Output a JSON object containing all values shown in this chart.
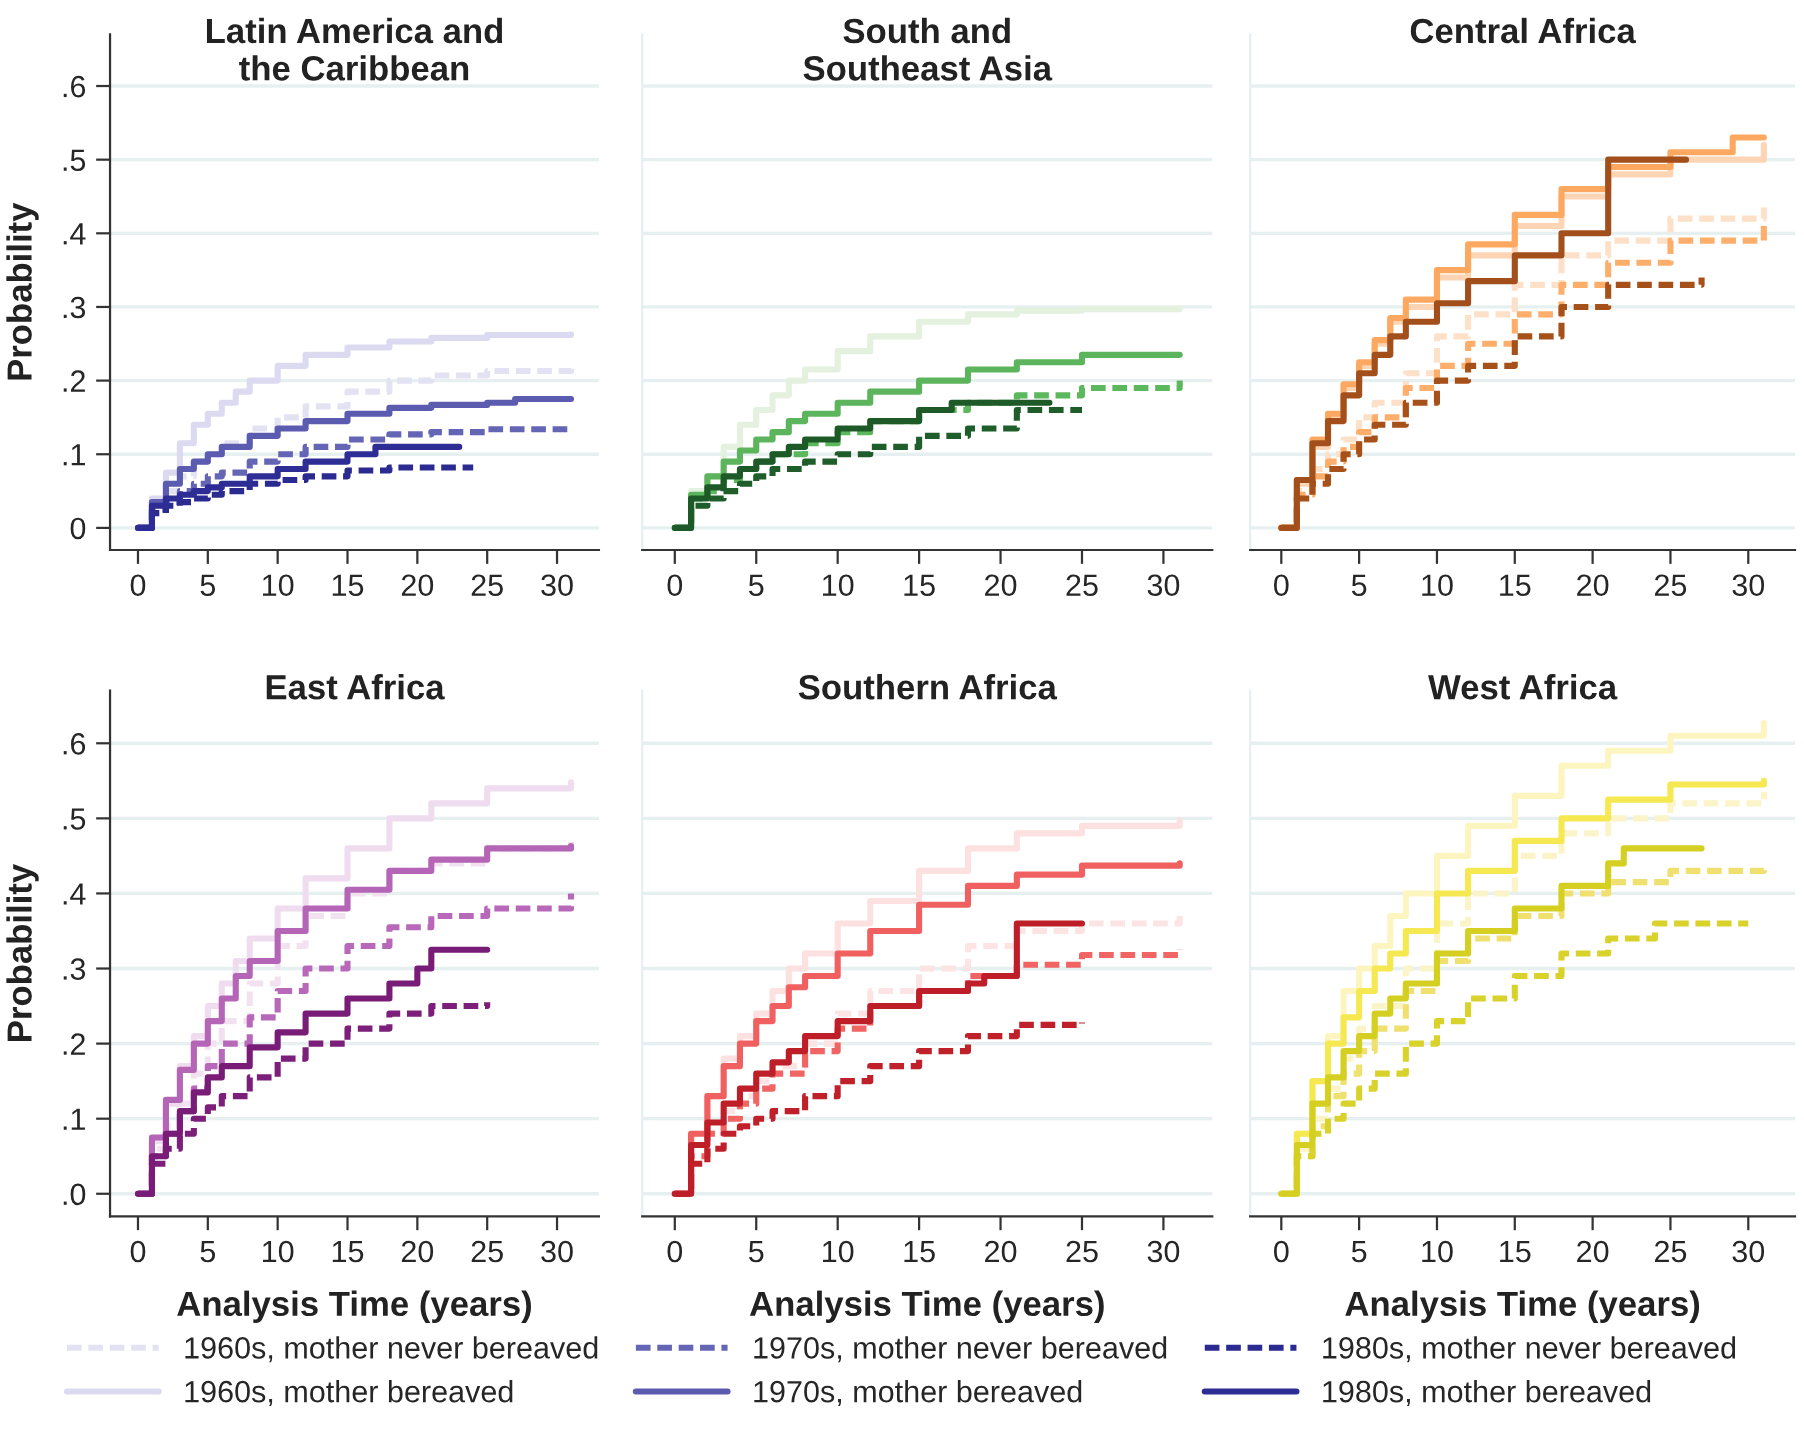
{
  "chart_data": [
    {
      "type": "step",
      "title": "Latin America and\nthe Caribbean",
      "ylabel": "Probability",
      "xlim": [
        -2,
        33
      ],
      "xticks": [
        0,
        5,
        10,
        15,
        20,
        25,
        30
      ],
      "ylim": [
        -0.03,
        0.67
      ],
      "yticks": [
        {
          "value": 0,
          "label": "0"
        },
        {
          "value": 0.1,
          "label": ".1"
        },
        {
          "value": 0.2,
          "label": ".2"
        },
        {
          "value": 0.3,
          "label": ".3"
        },
        {
          "value": 0.4,
          "label": ".4"
        },
        {
          "value": 0.5,
          "label": ".5"
        },
        {
          "value": 0.6,
          "label": ".6"
        }
      ],
      "grid": "y",
      "legend": "bottom",
      "series": [
        {
          "name": "1960s, mother never bereaved",
          "color": "#e3e2f2",
          "line_style": "dashed",
          "x": [
            0,
            1,
            2,
            3,
            4,
            5,
            6,
            8,
            10,
            12,
            15,
            18,
            21,
            25,
            31
          ],
          "values": [
            0,
            0.03,
            0.05,
            0.07,
            0.09,
            0.1,
            0.115,
            0.135,
            0.15,
            0.165,
            0.185,
            0.2,
            0.207,
            0.213,
            0.217
          ]
        },
        {
          "name": "1960s, mother bereaved",
          "color": "#dcdaf0",
          "line_style": "solid",
          "x": [
            0,
            1,
            2,
            3,
            4,
            5,
            6,
            7,
            8,
            10,
            12,
            15,
            18,
            21,
            25,
            31
          ],
          "values": [
            0,
            0.04,
            0.075,
            0.115,
            0.14,
            0.155,
            0.17,
            0.185,
            0.2,
            0.22,
            0.235,
            0.245,
            0.253,
            0.258,
            0.262,
            0.263
          ]
        },
        {
          "name": "1970s, mother never bereaved",
          "color": "#6565b5",
          "line_style": "dashed",
          "x": [
            0,
            1,
            2,
            3,
            4,
            5,
            6,
            8,
            10,
            12,
            15,
            18,
            21,
            25,
            31
          ],
          "values": [
            0,
            0.025,
            0.035,
            0.05,
            0.06,
            0.07,
            0.075,
            0.09,
            0.1,
            0.11,
            0.12,
            0.127,
            0.13,
            0.134,
            0.136
          ]
        },
        {
          "name": "1970s, mother bereaved",
          "color": "#5b5bb0",
          "line_style": "solid",
          "x": [
            0,
            1,
            2,
            3,
            4,
            5,
            6,
            8,
            10,
            12,
            15,
            18,
            21,
            25,
            27,
            31
          ],
          "values": [
            0,
            0.035,
            0.06,
            0.08,
            0.09,
            0.1,
            0.11,
            0.125,
            0.135,
            0.145,
            0.155,
            0.163,
            0.167,
            0.17,
            0.175,
            0.175
          ]
        },
        {
          "name": "1980s, mother never bereaved",
          "color": "#2a2a90",
          "line_style": "dashed",
          "x": [
            0,
            1,
            2,
            3,
            4,
            5,
            6,
            8,
            10,
            12,
            15,
            18,
            24
          ],
          "values": [
            0,
            0.02,
            0.03,
            0.035,
            0.04,
            0.045,
            0.05,
            0.06,
            0.065,
            0.07,
            0.078,
            0.082,
            0.082
          ]
        },
        {
          "name": "1980s, mother bereaved",
          "color": "#2d2d95",
          "line_style": "solid",
          "x": [
            0,
            1,
            2,
            3,
            4,
            5,
            6,
            8,
            10,
            12,
            15,
            17,
            23
          ],
          "values": [
            0,
            0.03,
            0.04,
            0.045,
            0.05,
            0.055,
            0.06,
            0.07,
            0.08,
            0.09,
            0.1,
            0.11,
            0.11
          ]
        }
      ]
    },
    {
      "type": "step",
      "title": "South and\nSoutheast Asia",
      "xlim": [
        -2,
        33
      ],
      "xticks": [
        0,
        5,
        10,
        15,
        20,
        25,
        30
      ],
      "ylim": [
        -0.03,
        0.67
      ],
      "yticks": [
        0,
        0.1,
        0.2,
        0.3,
        0.4,
        0.5,
        0.6
      ],
      "tick_labels": "x",
      "grid": "y",
      "series": [
        {
          "color": "#e3f1de",
          "line_style": "solid",
          "x": [
            0,
            1,
            2,
            3,
            4,
            5,
            6,
            7,
            8,
            10,
            12,
            15,
            18,
            21,
            25,
            31
          ],
          "values": [
            0,
            0.05,
            0.07,
            0.11,
            0.14,
            0.16,
            0.18,
            0.2,
            0.215,
            0.24,
            0.26,
            0.28,
            0.29,
            0.295,
            0.297,
            0.298
          ]
        },
        {
          "color": "#5cb85c",
          "line_style": "dashed",
          "x": [
            0,
            1,
            2,
            3,
            4,
            5,
            6,
            8,
            10,
            12,
            15,
            18,
            21,
            25,
            31
          ],
          "values": [
            0,
            0.04,
            0.05,
            0.065,
            0.08,
            0.09,
            0.1,
            0.115,
            0.13,
            0.145,
            0.16,
            0.17,
            0.18,
            0.19,
            0.2
          ]
        },
        {
          "color": "#5cb45c",
          "line_style": "solid",
          "x": [
            0,
            1,
            2,
            3,
            4,
            5,
            6,
            7,
            8,
            10,
            12,
            15,
            18,
            21,
            25,
            31
          ],
          "values": [
            0,
            0.045,
            0.07,
            0.09,
            0.105,
            0.12,
            0.13,
            0.145,
            0.155,
            0.17,
            0.185,
            0.2,
            0.215,
            0.225,
            0.235,
            0.235
          ]
        },
        {
          "color": "#1f5e2a",
          "line_style": "dashed",
          "x": [
            0,
            1,
            2,
            3,
            4,
            5,
            6,
            8,
            10,
            12,
            15,
            18,
            21,
            25
          ],
          "values": [
            0,
            0.03,
            0.04,
            0.05,
            0.06,
            0.07,
            0.08,
            0.09,
            0.1,
            0.11,
            0.125,
            0.135,
            0.16,
            0.16
          ]
        },
        {
          "color": "#1d5a28",
          "line_style": "solid",
          "x": [
            0,
            1,
            2,
            3,
            4,
            5,
            6,
            7,
            8,
            10,
            12,
            15,
            17,
            23
          ],
          "values": [
            0,
            0.04,
            0.055,
            0.07,
            0.08,
            0.09,
            0.1,
            0.11,
            0.12,
            0.135,
            0.145,
            0.16,
            0.17,
            0.17
          ]
        }
      ]
    },
    {
      "type": "step",
      "title": "Central Africa",
      "xlim": [
        -2,
        33
      ],
      "xticks": [
        0,
        5,
        10,
        15,
        20,
        25,
        30
      ],
      "ylim": [
        -0.03,
        0.67
      ],
      "yticks": [
        0,
        0.1,
        0.2,
        0.3,
        0.4,
        0.5,
        0.6
      ],
      "tick_labels": "x",
      "grid": "y",
      "series": [
        {
          "color": "#fde0c8",
          "line_style": "dashed",
          "x": [
            0,
            1,
            2,
            3,
            4,
            5,
            6,
            8,
            10,
            12,
            15,
            18,
            21,
            25,
            31
          ],
          "values": [
            0,
            0.05,
            0.08,
            0.1,
            0.12,
            0.15,
            0.17,
            0.21,
            0.26,
            0.29,
            0.33,
            0.37,
            0.39,
            0.42,
            0.435
          ]
        },
        {
          "color": "#fdd5b5",
          "line_style": "solid",
          "x": [
            0,
            1,
            2,
            3,
            4,
            5,
            6,
            7,
            8,
            10,
            12,
            15,
            18,
            21,
            25,
            31
          ],
          "values": [
            0,
            0.06,
            0.11,
            0.15,
            0.19,
            0.22,
            0.25,
            0.28,
            0.3,
            0.34,
            0.37,
            0.41,
            0.45,
            0.48,
            0.5,
            0.52
          ]
        },
        {
          "color": "#fdae6b",
          "line_style": "dashed",
          "x": [
            0,
            1,
            2,
            3,
            4,
            5,
            6,
            8,
            10,
            12,
            15,
            18,
            21,
            25,
            31
          ],
          "values": [
            0,
            0.045,
            0.07,
            0.09,
            0.11,
            0.13,
            0.15,
            0.19,
            0.22,
            0.25,
            0.29,
            0.33,
            0.36,
            0.39,
            0.41
          ]
        },
        {
          "color": "#fda860",
          "line_style": "solid",
          "x": [
            0,
            1,
            2,
            3,
            4,
            5,
            6,
            7,
            8,
            10,
            12,
            15,
            18,
            21,
            25,
            29,
            31
          ],
          "values": [
            0,
            0.065,
            0.12,
            0.155,
            0.195,
            0.225,
            0.255,
            0.285,
            0.31,
            0.35,
            0.385,
            0.425,
            0.46,
            0.49,
            0.51,
            0.53,
            0.53
          ]
        },
        {
          "color": "#a6501a",
          "line_style": "dashed",
          "x": [
            0,
            1,
            2,
            3,
            4,
            5,
            6,
            8,
            10,
            12,
            15,
            18,
            21,
            27
          ],
          "values": [
            0,
            0.04,
            0.06,
            0.08,
            0.1,
            0.12,
            0.14,
            0.17,
            0.2,
            0.22,
            0.26,
            0.3,
            0.33,
            0.34
          ]
        },
        {
          "color": "#a34f1c",
          "line_style": "solid",
          "x": [
            0,
            1,
            2,
            3,
            4,
            5,
            6,
            7,
            8,
            10,
            12,
            15,
            18,
            21,
            26
          ],
          "values": [
            0,
            0.065,
            0.115,
            0.145,
            0.18,
            0.21,
            0.235,
            0.26,
            0.28,
            0.305,
            0.335,
            0.37,
            0.4,
            0.5,
            0.5
          ]
        }
      ]
    },
    {
      "type": "step",
      "title": "East Africa",
      "ylabel": "Probability",
      "xlabel": "Analysis Time (years)",
      "xlim": [
        -2,
        33
      ],
      "xticks": [
        0,
        5,
        10,
        15,
        20,
        25,
        30
      ],
      "ylim": [
        -0.03,
        0.67
      ],
      "yticks": [
        {
          "value": 0,
          "label": ".0"
        },
        {
          "value": 0.1,
          "label": ".1"
        },
        {
          "value": 0.2,
          "label": ".2"
        },
        {
          "value": 0.3,
          "label": ".3"
        },
        {
          "value": 0.4,
          "label": ".4"
        },
        {
          "value": 0.5,
          "label": ".5"
        },
        {
          "value": 0.6,
          "label": ".6"
        }
      ],
      "grid": "y",
      "series": [
        {
          "color": "#f2e2f0",
          "line_style": "dashed",
          "x": [
            0,
            1,
            2,
            3,
            4,
            5,
            6,
            8,
            10,
            12,
            15,
            18,
            21,
            25,
            31
          ],
          "values": [
            0,
            0.06,
            0.09,
            0.12,
            0.16,
            0.2,
            0.23,
            0.28,
            0.33,
            0.37,
            0.4,
            0.43,
            0.44,
            0.46,
            0.47
          ]
        },
        {
          "color": "#f0dcef",
          "line_style": "solid",
          "x": [
            0,
            1,
            2,
            3,
            4,
            5,
            6,
            7,
            8,
            10,
            12,
            15,
            18,
            21,
            25,
            31
          ],
          "values": [
            0,
            0.07,
            0.12,
            0.17,
            0.21,
            0.25,
            0.28,
            0.31,
            0.34,
            0.38,
            0.42,
            0.46,
            0.5,
            0.52,
            0.54,
            0.548
          ]
        },
        {
          "color": "#b868b8",
          "line_style": "dashed",
          "x": [
            0,
            1,
            2,
            3,
            4,
            5,
            6,
            8,
            10,
            12,
            15,
            18,
            21,
            25,
            31
          ],
          "values": [
            0,
            0.05,
            0.08,
            0.11,
            0.14,
            0.17,
            0.2,
            0.235,
            0.27,
            0.3,
            0.33,
            0.355,
            0.37,
            0.38,
            0.4
          ]
        },
        {
          "color": "#b565b5",
          "line_style": "solid",
          "x": [
            0,
            1,
            2,
            3,
            4,
            5,
            6,
            7,
            8,
            10,
            12,
            15,
            18,
            21,
            25,
            31
          ],
          "values": [
            0,
            0.075,
            0.125,
            0.165,
            0.2,
            0.23,
            0.26,
            0.29,
            0.31,
            0.35,
            0.38,
            0.405,
            0.43,
            0.445,
            0.46,
            0.463
          ]
        },
        {
          "color": "#7b1f7b",
          "line_style": "dashed",
          "x": [
            0,
            1,
            2,
            3,
            4,
            5,
            6,
            8,
            10,
            12,
            15,
            18,
            21,
            25
          ],
          "values": [
            0,
            0.04,
            0.06,
            0.08,
            0.1,
            0.115,
            0.13,
            0.155,
            0.18,
            0.2,
            0.22,
            0.24,
            0.25,
            0.255
          ]
        },
        {
          "color": "#781c78",
          "line_style": "solid",
          "x": [
            0,
            1,
            2,
            3,
            4,
            5,
            6,
            8,
            10,
            12,
            15,
            18,
            20,
            21,
            25
          ],
          "values": [
            0,
            0.05,
            0.08,
            0.11,
            0.135,
            0.155,
            0.17,
            0.195,
            0.215,
            0.24,
            0.26,
            0.28,
            0.3,
            0.325,
            0.325
          ]
        }
      ]
    },
    {
      "type": "step",
      "title": "Southern Africa",
      "xlabel": "Analysis Time (years)",
      "xlim": [
        -2,
        33
      ],
      "xticks": [
        0,
        5,
        10,
        15,
        20,
        25,
        30
      ],
      "ylim": [
        -0.03,
        0.67
      ],
      "yticks": [
        0,
        0.1,
        0.2,
        0.3,
        0.4,
        0.5,
        0.6
      ],
      "tick_labels": "x",
      "grid": "y",
      "series": [
        {
          "color": "#fde4e4",
          "line_style": "dashed",
          "x": [
            0,
            1,
            2,
            3,
            4,
            5,
            6,
            8,
            10,
            12,
            15,
            18,
            21,
            25,
            31
          ],
          "values": [
            0,
            0.05,
            0.08,
            0.11,
            0.13,
            0.15,
            0.17,
            0.2,
            0.24,
            0.27,
            0.3,
            0.33,
            0.35,
            0.36,
            0.37
          ]
        },
        {
          "color": "#fde0e0",
          "line_style": "solid",
          "x": [
            0,
            1,
            2,
            3,
            4,
            5,
            6,
            7,
            8,
            10,
            12,
            15,
            18,
            21,
            25,
            31
          ],
          "values": [
            0,
            0.08,
            0.13,
            0.18,
            0.21,
            0.24,
            0.27,
            0.3,
            0.32,
            0.36,
            0.39,
            0.43,
            0.46,
            0.48,
            0.49,
            0.497
          ]
        },
        {
          "color": "#f06464",
          "line_style": "dashed",
          "x": [
            0,
            1,
            2,
            3,
            4,
            5,
            6,
            8,
            10,
            12,
            15,
            18,
            21,
            25,
            31
          ],
          "values": [
            0,
            0.05,
            0.08,
            0.1,
            0.12,
            0.14,
            0.16,
            0.19,
            0.22,
            0.25,
            0.27,
            0.29,
            0.305,
            0.318,
            0.325
          ]
        },
        {
          "color": "#f06060",
          "line_style": "solid",
          "x": [
            0,
            1,
            2,
            3,
            4,
            5,
            6,
            7,
            8,
            10,
            12,
            15,
            18,
            21,
            25,
            31
          ],
          "values": [
            0,
            0.08,
            0.13,
            0.17,
            0.2,
            0.23,
            0.25,
            0.275,
            0.29,
            0.32,
            0.35,
            0.385,
            0.41,
            0.425,
            0.437,
            0.44
          ]
        },
        {
          "color": "#c0202a",
          "line_style": "dashed",
          "x": [
            0,
            1,
            2,
            3,
            4,
            5,
            6,
            8,
            10,
            12,
            15,
            18,
            21,
            25
          ],
          "values": [
            0,
            0.04,
            0.06,
            0.08,
            0.09,
            0.1,
            0.11,
            0.13,
            0.15,
            0.17,
            0.19,
            0.21,
            0.225,
            0.228
          ]
        },
        {
          "color": "#bd1e28",
          "line_style": "solid",
          "x": [
            0,
            1,
            2,
            3,
            4,
            5,
            6,
            7,
            8,
            10,
            12,
            15,
            18,
            19,
            21,
            25
          ],
          "values": [
            0,
            0.065,
            0.095,
            0.12,
            0.14,
            0.16,
            0.175,
            0.19,
            0.21,
            0.23,
            0.25,
            0.27,
            0.28,
            0.29,
            0.36,
            0.36
          ]
        }
      ]
    },
    {
      "type": "step",
      "title": "West Africa",
      "xlabel": "Analysis Time (years)",
      "xlim": [
        -2,
        33
      ],
      "xticks": [
        0,
        5,
        10,
        15,
        20,
        25,
        30
      ],
      "ylim": [
        -0.03,
        0.67
      ],
      "yticks": [
        0,
        0.1,
        0.2,
        0.3,
        0.4,
        0.5,
        0.6
      ],
      "tick_labels": "x",
      "grid": "y",
      "series": [
        {
          "color": "#fbf4c8",
          "line_style": "dashed",
          "x": [
            0,
            1,
            2,
            3,
            4,
            5,
            6,
            8,
            10,
            12,
            15,
            18,
            21,
            25,
            31
          ],
          "values": [
            0,
            0.06,
            0.1,
            0.14,
            0.18,
            0.22,
            0.25,
            0.3,
            0.36,
            0.4,
            0.45,
            0.48,
            0.5,
            0.52,
            0.535
          ]
        },
        {
          "color": "#fdf5c0",
          "line_style": "solid",
          "x": [
            0,
            1,
            2,
            3,
            4,
            5,
            6,
            7,
            8,
            10,
            12,
            15,
            18,
            21,
            25,
            31
          ],
          "values": [
            0,
            0.08,
            0.15,
            0.21,
            0.27,
            0.3,
            0.33,
            0.37,
            0.4,
            0.45,
            0.49,
            0.53,
            0.57,
            0.59,
            0.61,
            0.627
          ]
        },
        {
          "color": "#f0e070",
          "line_style": "dashed",
          "x": [
            0,
            1,
            2,
            3,
            4,
            5,
            6,
            8,
            10,
            12,
            15,
            18,
            21,
            25,
            31
          ],
          "values": [
            0,
            0.05,
            0.09,
            0.13,
            0.16,
            0.19,
            0.22,
            0.27,
            0.31,
            0.34,
            0.37,
            0.4,
            0.415,
            0.43,
            0.44
          ]
        },
        {
          "color": "#f5e850",
          "line_style": "solid",
          "x": [
            0,
            1,
            2,
            3,
            4,
            5,
            6,
            7,
            8,
            10,
            12,
            15,
            18,
            21,
            25,
            31
          ],
          "values": [
            0,
            0.08,
            0.15,
            0.2,
            0.235,
            0.27,
            0.3,
            0.32,
            0.35,
            0.4,
            0.43,
            0.47,
            0.5,
            0.525,
            0.545,
            0.55
          ]
        },
        {
          "color": "#d8d22a",
          "line_style": "dashed",
          "x": [
            0,
            1,
            2,
            3,
            4,
            5,
            6,
            8,
            10,
            12,
            15,
            18,
            21,
            24,
            30
          ],
          "values": [
            0,
            0.05,
            0.08,
            0.1,
            0.12,
            0.14,
            0.16,
            0.2,
            0.23,
            0.26,
            0.29,
            0.32,
            0.34,
            0.36,
            0.36
          ]
        },
        {
          "color": "#d4cf20",
          "line_style": "solid",
          "x": [
            0,
            1,
            2,
            3,
            4,
            5,
            6,
            7,
            8,
            10,
            12,
            15,
            18,
            21,
            22,
            27
          ],
          "values": [
            0,
            0.065,
            0.12,
            0.155,
            0.19,
            0.21,
            0.24,
            0.26,
            0.28,
            0.32,
            0.35,
            0.38,
            0.41,
            0.44,
            0.46,
            0.46
          ]
        }
      ]
    }
  ]
}
